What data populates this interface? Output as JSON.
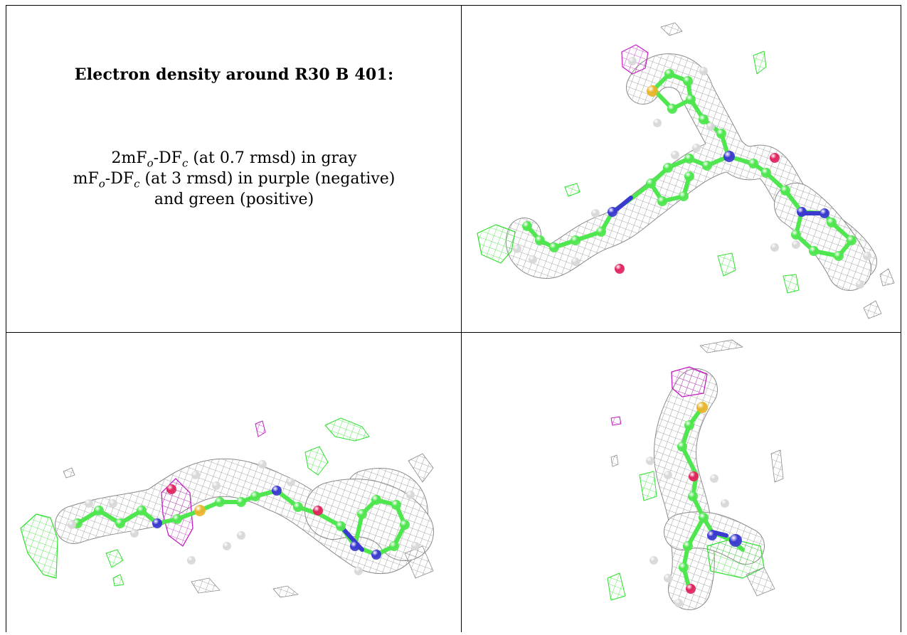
{
  "caption": {
    "title": "Electron density around R30 B 401:",
    "line1": {
      "pre": "2mF",
      "s1": "o",
      "mid": "-DF",
      "s2": "c",
      "post": " (at 0.7 rmsd) in gray"
    },
    "line2": {
      "pre": "mF",
      "s1": "o",
      "mid": "-DF",
      "s2": "c",
      "post": " (at 3 rmsd) in purple (negative)"
    },
    "line3": "and green (positive)"
  },
  "colors": {
    "carbon": "#4fe64f",
    "nitrogen": "#3a3ad0",
    "oxygen": "#e0245e",
    "sulfur": "#e8b52a",
    "hydrogen": "#d8d8d8",
    "density_2fofc": "#8a8a8a",
    "density_negative": "#c020c0",
    "density_positive": "#2fe02f"
  },
  "panels": [
    {
      "view": "front-view",
      "icon": "ligand-density-icon"
    },
    {
      "view": "side-view",
      "icon": "ligand-density-icon"
    },
    {
      "view": "top-view",
      "icon": "ligand-density-icon"
    }
  ]
}
